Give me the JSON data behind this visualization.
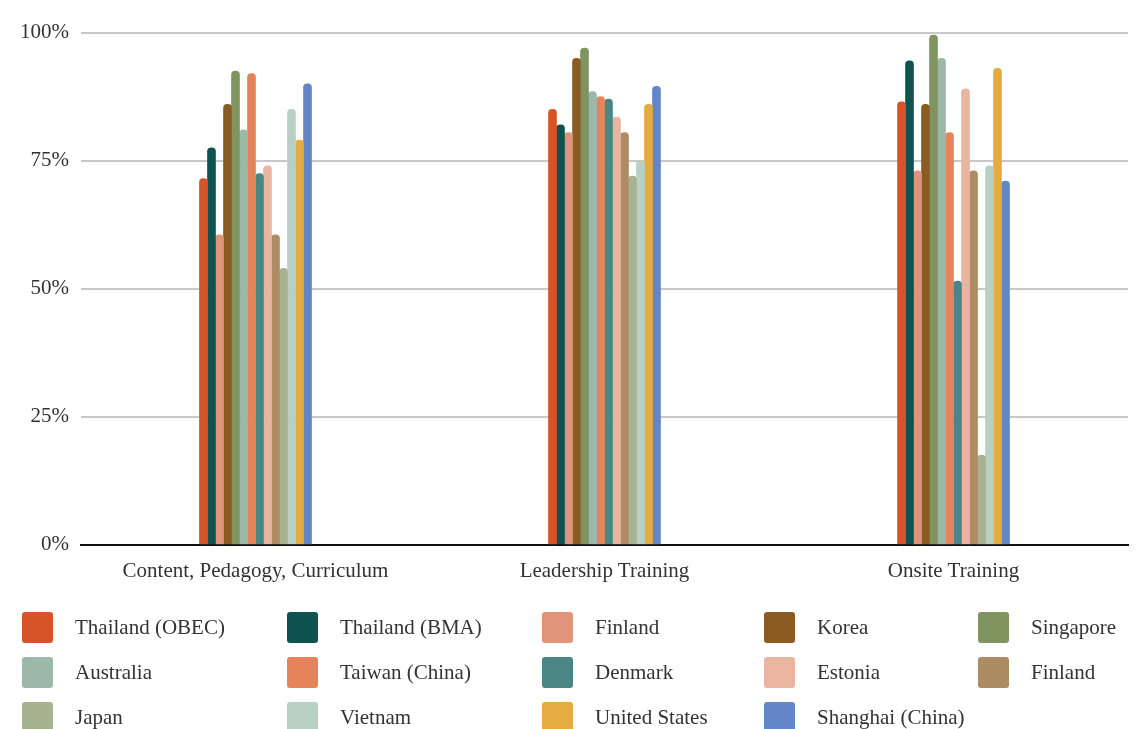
{
  "chart_data": {
    "type": "bar",
    "categories": [
      "Content, Pedagogy, Curriculum",
      "Leadership Training",
      "Onsite Training"
    ],
    "series": [
      {
        "name": "Thailand (OBEC)",
        "color": "#d65428",
        "values": [
          71.5,
          85,
          86.5
        ]
      },
      {
        "name": "Thailand (BMA)",
        "color": "#0f5350",
        "values": [
          77.5,
          82,
          94.5
        ]
      },
      {
        "name": "Finland",
        "color": "#e0957a",
        "values": [
          60.5,
          80.5,
          73
        ]
      },
      {
        "name": "Korea",
        "color": "#8a5b23",
        "values": [
          86,
          95,
          86
        ]
      },
      {
        "name": "Singapore",
        "color": "#7f9460",
        "values": [
          92.5,
          97,
          99.5
        ]
      },
      {
        "name": "Australia",
        "color": "#9bb8a8",
        "values": [
          81,
          88.5,
          95
        ]
      },
      {
        "name": "Taiwan (China)",
        "color": "#e5845b",
        "values": [
          92,
          87.5,
          80.5
        ]
      },
      {
        "name": "Denmark",
        "color": "#4a8784",
        "values": [
          72.5,
          87,
          51.5
        ]
      },
      {
        "name": "Estonia",
        "color": "#e9b4a0",
        "values": [
          74,
          83.5,
          89
        ]
      },
      {
        "name": "Finland",
        "color": "#ad8c62",
        "values": [
          60.5,
          80.5,
          73
        ]
      },
      {
        "name": "Japan",
        "color": "#a6b290",
        "values": [
          54,
          72,
          17.5
        ]
      },
      {
        "name": "Vietnam",
        "color": "#b8d0c3",
        "values": [
          85,
          75,
          74
        ]
      },
      {
        "name": "United States",
        "color": "#e4ab40",
        "values": [
          79,
          86,
          93
        ]
      },
      {
        "name": "Shanghai (China)",
        "color": "#6387c6",
        "values": [
          90,
          89.5,
          71
        ]
      }
    ],
    "ylim": [
      0,
      100
    ],
    "yticks": [
      {
        "value": 0,
        "label": "0%"
      },
      {
        "value": 25,
        "label": "25%"
      },
      {
        "value": 50,
        "label": "50%"
      },
      {
        "value": 75,
        "label": "75%"
      },
      {
        "value": 100,
        "label": "100%"
      }
    ],
    "grid": "y",
    "legend": "bottom"
  }
}
